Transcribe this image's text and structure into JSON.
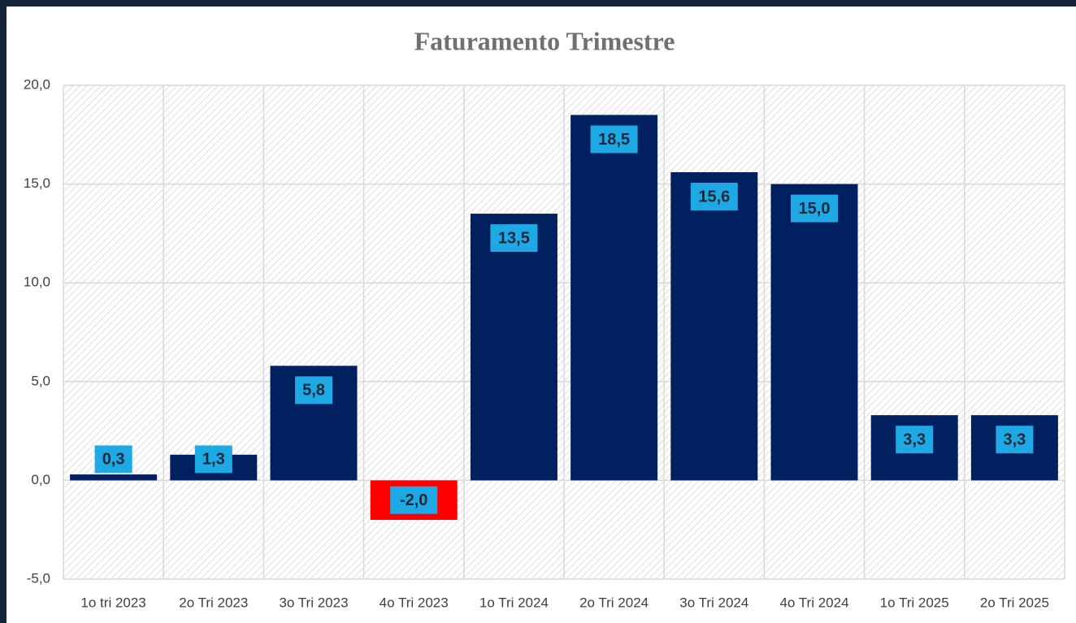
{
  "chart_data": {
    "type": "bar",
    "title": "Faturamento Trimestre",
    "categories": [
      "1o tri 2023",
      "2o Tri 2023",
      "3o Tri 2023",
      "4o Tri 2023",
      "1o Tri 2024",
      "2o Tri 2024",
      "3o Tri 2024",
      "4o Tri 2024",
      "1o Tri 2025",
      "2o Tri 2025"
    ],
    "values": [
      0.3,
      1.3,
      5.8,
      -2.0,
      13.5,
      18.5,
      15.6,
      15.0,
      3.3,
      3.3
    ],
    "value_labels": [
      "0,3",
      "1,3",
      "5,8",
      "-2,0",
      "13,5",
      "18,5",
      "15,6",
      "15,0",
      "3,3",
      "3,3"
    ],
    "colors": [
      "#002060",
      "#002060",
      "#002060",
      "#ff0000",
      "#002060",
      "#002060",
      "#002060",
      "#002060",
      "#002060",
      "#002060"
    ],
    "label_box_color": "#1ea8e4",
    "ylim": [
      -5,
      20
    ],
    "yticks": [
      {
        "value": -5,
        "label": "-5,0"
      },
      {
        "value": 0,
        "label": "0,0"
      },
      {
        "value": 5,
        "label": "5,0"
      },
      {
        "value": 10,
        "label": "10,0"
      },
      {
        "value": 15,
        "label": "15,0"
      },
      {
        "value": 20,
        "label": "20,0"
      }
    ],
    "grid": true
  }
}
